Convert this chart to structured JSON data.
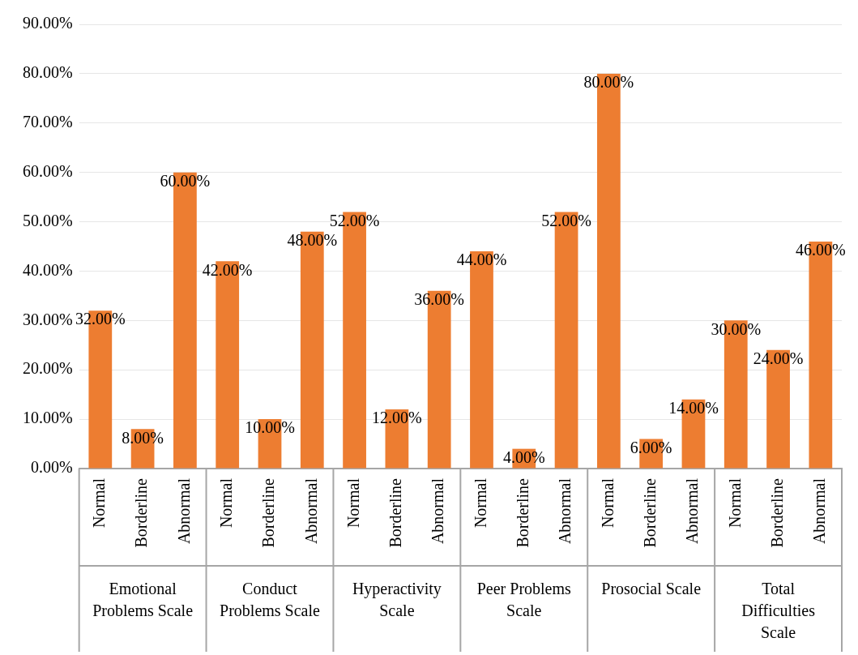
{
  "chart_data": {
    "type": "bar",
    "categories": [
      "Normal",
      "Borderline",
      "Abnormal",
      "Normal",
      "Borderline",
      "Abnormal",
      "Normal",
      "Borderline",
      "Abnormal",
      "Normal",
      "Borderline",
      "Abnormal",
      "Normal",
      "Borderline",
      "Abnormal",
      "Normal",
      "Borderline",
      "Abnormal"
    ],
    "values": [
      32,
      8,
      60,
      42,
      10,
      48,
      52,
      12,
      36,
      44,
      4,
      52,
      80,
      6,
      14,
      30,
      24,
      46
    ],
    "value_labels": [
      "32.00%",
      "8.00%",
      "60.00%",
      "42.00%",
      "10.00%",
      "48.00%",
      "52.00%",
      "12.00%",
      "36.00%",
      "44.00%",
      "4.00%",
      "52.00%",
      "80.00%",
      "6.00%",
      "14.00%",
      "30.00%",
      "24.00%",
      "46.00%"
    ],
    "color": "#ed7d31",
    "ylim": [
      0,
      90
    ],
    "yticks": [
      {
        "value": 0,
        "label": "0.00%"
      },
      {
        "value": 10,
        "label": "10.00%"
      },
      {
        "value": 20,
        "label": "20.00%"
      },
      {
        "value": 30,
        "label": "30.00%"
      },
      {
        "value": 40,
        "label": "40.00%"
      },
      {
        "value": 50,
        "label": "50.00%"
      },
      {
        "value": 60,
        "label": "60.00%"
      },
      {
        "value": 70,
        "label": "70.00%"
      },
      {
        "value": 80,
        "label": "80.00%"
      },
      {
        "value": 90,
        "label": "90.00%"
      }
    ],
    "grid": "y",
    "annotations": [
      "Emotional Problems Scale",
      "Conduct Problems Scale",
      "Hyperactivity Scale",
      "Peer Problems Scale",
      "Prosocial Scale",
      "Total Difficulties Scale"
    ]
  }
}
